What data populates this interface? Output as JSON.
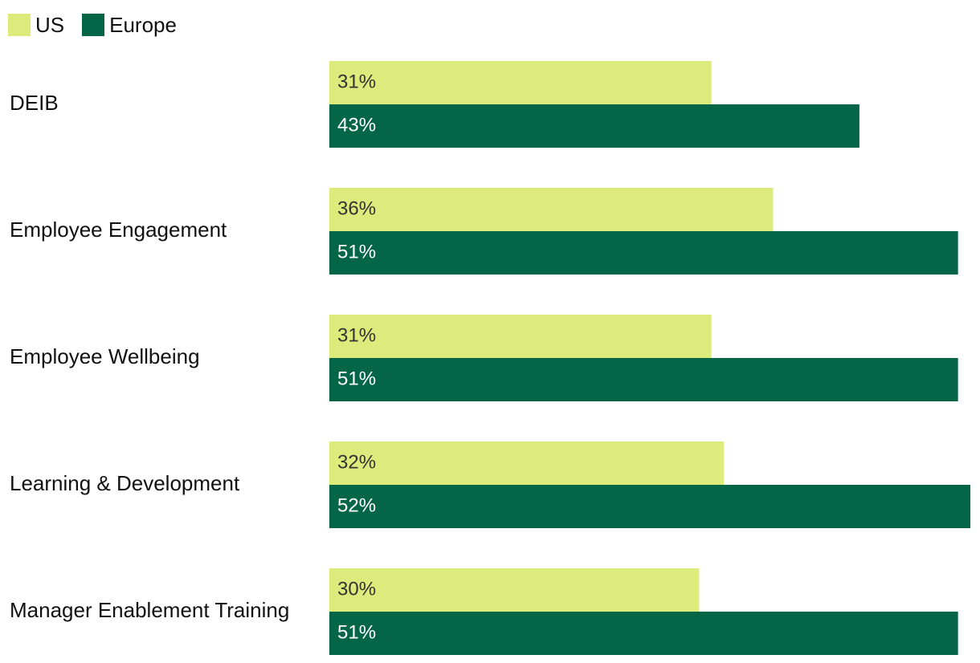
{
  "chart_data": {
    "type": "bar",
    "orientation": "horizontal",
    "categories": [
      "DEIB",
      "Employee Engagement",
      "Employee Wellbeing",
      "Learning & Development",
      "Manager Enablement Training"
    ],
    "series": [
      {
        "name": "US",
        "values": [
          31,
          36,
          31,
          32,
          30
        ],
        "labels": [
          "31%",
          "36%",
          "31%",
          "32%",
          "30%"
        ],
        "color": "#dceb7b",
        "label_color": "#333333"
      },
      {
        "name": "Europe",
        "values": [
          43,
          51,
          51,
          52,
          51
        ],
        "labels": [
          "43%",
          "51%",
          "51%",
          "52%",
          "51%"
        ],
        "color": "#056647",
        "label_color": "#ffffff"
      }
    ],
    "title": "",
    "xlabel": "",
    "ylabel": "",
    "xlim": [
      0,
      52
    ],
    "grid": false,
    "legend_position": "top-left",
    "value_suffix": "%"
  },
  "legend": {
    "items": [
      {
        "label": "US",
        "color": "#dceb7b"
      },
      {
        "label": "Europe",
        "color": "#056647"
      }
    ]
  }
}
